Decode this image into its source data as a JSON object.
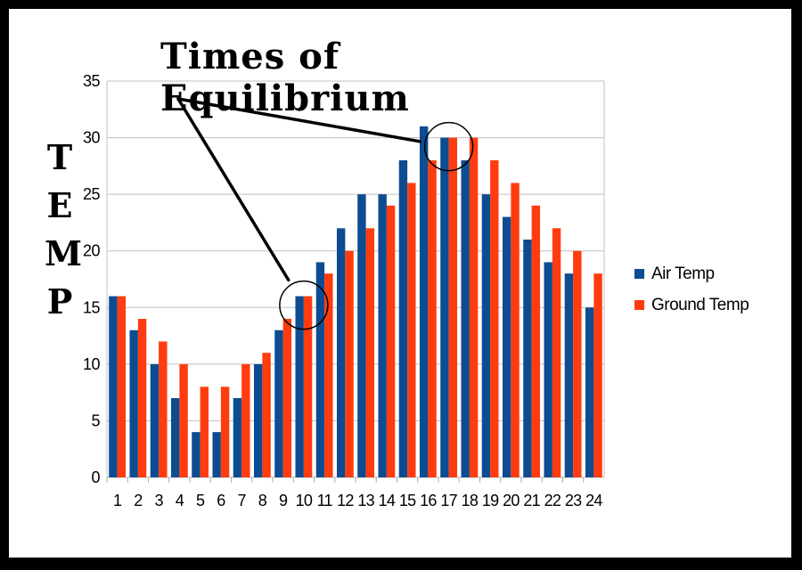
{
  "title": "Times of Equilibrium",
  "ylabel_letters": [
    "T",
    "E",
    "M",
    "P"
  ],
  "colors": {
    "air": "#0e4c91",
    "ground": "#ff3c0f",
    "grid": "#c0c0c0",
    "frame": "#000000",
    "background": "#ffffff"
  },
  "chart_data": {
    "type": "bar",
    "title": "Times of Equilibrium",
    "ylabel": "TEMP",
    "xlabel": "",
    "categories": [
      "1",
      "2",
      "3",
      "4",
      "5",
      "6",
      "7",
      "8",
      "9",
      "10",
      "11",
      "12",
      "13",
      "14",
      "15",
      "16",
      "17",
      "18",
      "19",
      "20",
      "21",
      "22",
      "23",
      "24"
    ],
    "series": [
      {
        "name": "Air Temp",
        "values": [
          16,
          13,
          10,
          7,
          4,
          4,
          7,
          10,
          13,
          16,
          19,
          22,
          25,
          25,
          28,
          31,
          30,
          28,
          25,
          23,
          21,
          19,
          18,
          15
        ]
      },
      {
        "name": "Ground Temp",
        "values": [
          16,
          14,
          12,
          10,
          8,
          8,
          10,
          11,
          14,
          16,
          18,
          20,
          22,
          24,
          26,
          28,
          30,
          30,
          28,
          26,
          24,
          22,
          20,
          18
        ]
      }
    ],
    "ylim": [
      0,
      35
    ],
    "yticks": [
      0,
      5,
      10,
      15,
      20,
      25,
      30,
      35
    ],
    "grid": true,
    "legend": "right",
    "annotations": [
      {
        "type": "circle",
        "x": "10"
      },
      {
        "type": "circle",
        "x": "17"
      }
    ]
  }
}
